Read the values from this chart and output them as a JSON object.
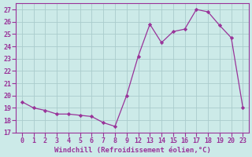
{
  "x_indices": [
    0,
    1,
    2,
    3,
    4,
    5,
    6,
    7,
    8,
    9,
    10,
    11,
    12,
    13,
    14,
    15,
    16,
    17,
    18,
    19
  ],
  "x_labels": [
    "0",
    "1",
    "2",
    "3",
    "4",
    "5",
    "6",
    "7",
    "8",
    "9",
    "12",
    "13",
    "14",
    "15",
    "16",
    "17",
    "18",
    "19",
    "20",
    "23"
  ],
  "y": [
    19.5,
    19.0,
    18.8,
    18.5,
    18.5,
    18.4,
    18.3,
    17.8,
    17.5,
    20.0,
    23.2,
    25.8,
    24.3,
    25.2,
    25.4,
    27.0,
    26.8,
    25.7,
    24.7,
    19.0
  ],
  "line_color": "#993399",
  "marker_color": "#993399",
  "bg_color": "#cceae8",
  "grid_color": "#aacccc",
  "axis_color": "#993399",
  "xlabel": "Windchill (Refroidissement éolien,°C)",
  "xlabel_color": "#993399",
  "ylabel_color": "#993399",
  "ylim": [
    17,
    27.5
  ],
  "yticks": [
    17,
    18,
    19,
    20,
    21,
    22,
    23,
    24,
    25,
    26,
    27
  ],
  "tick_fontsize": 6.0,
  "xlabel_fontsize": 6.5
}
